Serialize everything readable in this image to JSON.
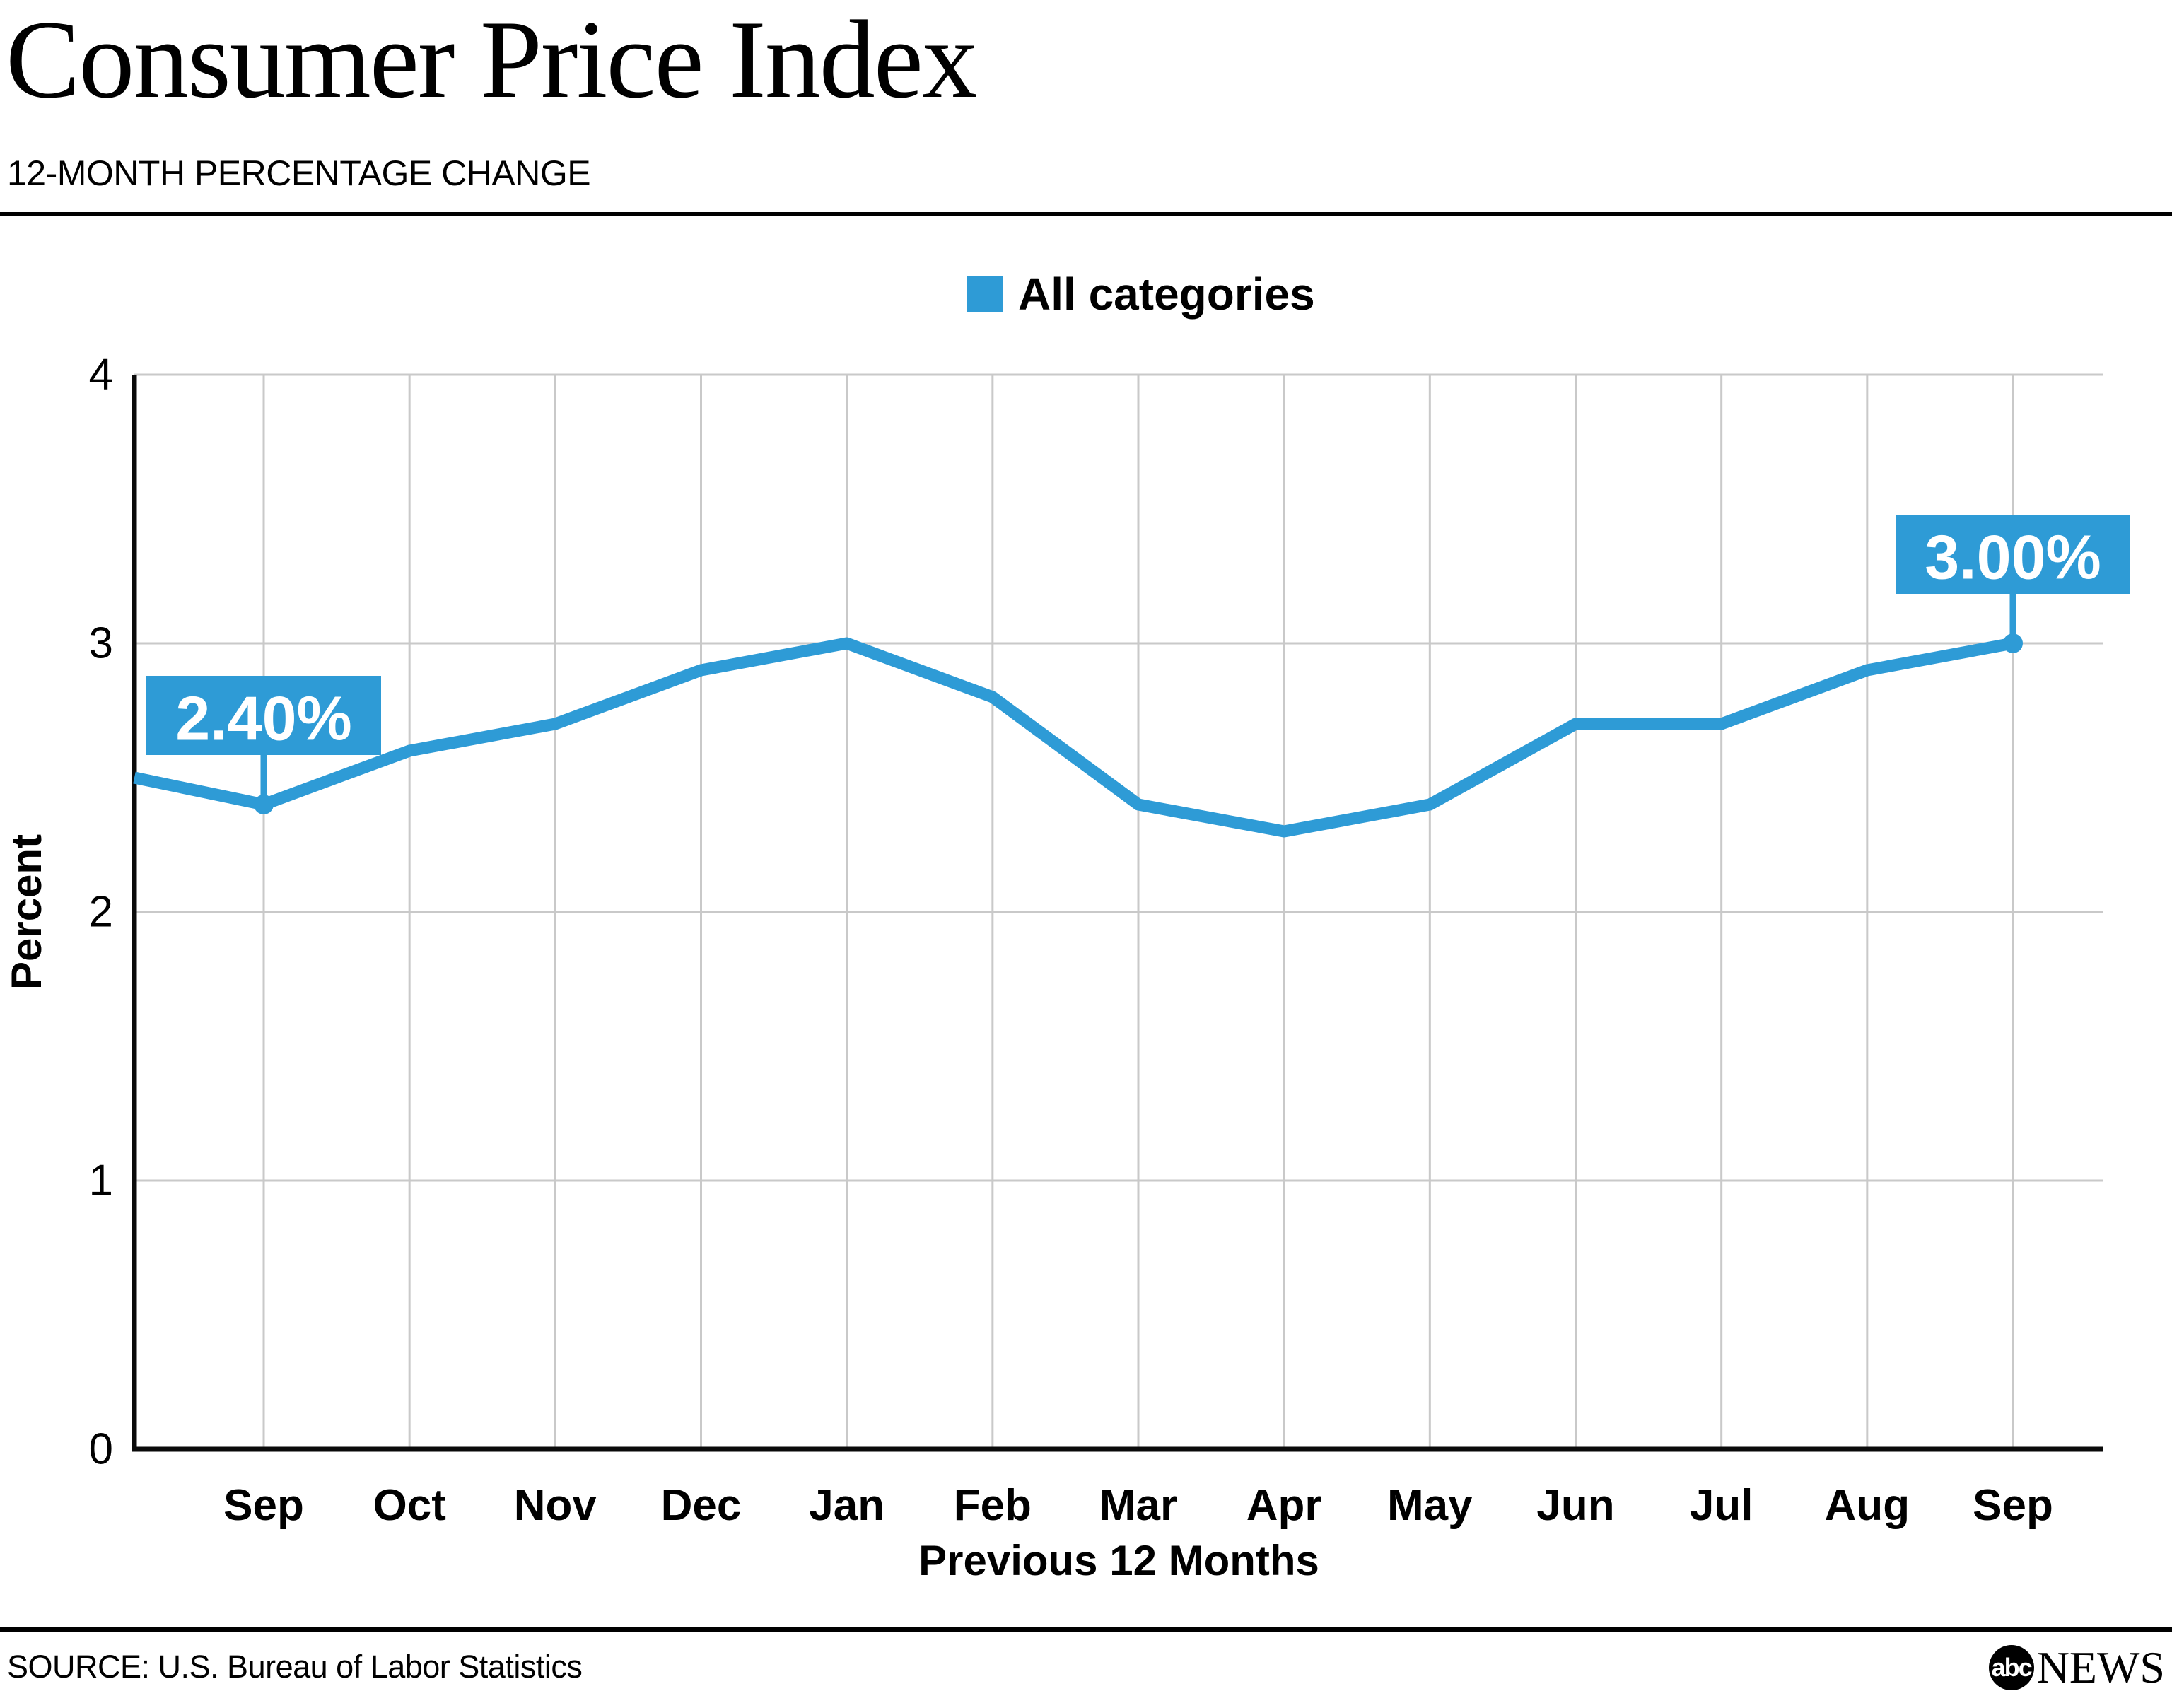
{
  "header": {
    "title": "Consumer Price Index",
    "subtitle": "12-MONTH PERCENTAGE CHANGE"
  },
  "legend": {
    "label": "All categories"
  },
  "footer": {
    "source": "SOURCE: U.S. Bureau of Labor Statistics",
    "logo_abc": "abc",
    "logo_news": "NEWS"
  },
  "colors": {
    "line": "#2E9BD6",
    "annotation_bg": "#2E9BD6",
    "annotation_text": "#FFFFFF",
    "grid": "#C9C9C9",
    "axis": "#0A0A0A",
    "text": "#000000"
  },
  "chart_data": {
    "type": "line",
    "title": "Consumer Price Index",
    "xlabel": "Previous 12 Months",
    "ylabel": "Percent",
    "categories": [
      "",
      "Sep",
      "Oct",
      "Nov",
      "Dec",
      "Jan",
      "Feb",
      "Mar",
      "Apr",
      "May",
      "Jun",
      "Jul",
      "Aug",
      "Sep"
    ],
    "series": [
      {
        "name": "All categories",
        "values": [
          2.5,
          2.4,
          2.6,
          2.7,
          2.9,
          3.0,
          2.8,
          2.4,
          2.3,
          2.4,
          2.7,
          2.7,
          2.9,
          3.0
        ]
      }
    ],
    "ylim": [
      0,
      4
    ],
    "yticks": [
      0,
      1,
      2,
      3,
      4
    ],
    "grid": true,
    "legend_position": "top",
    "annotations": [
      {
        "point_index": 1,
        "label": "2.40%"
      },
      {
        "point_index": 13,
        "label": "3.00%"
      }
    ]
  }
}
